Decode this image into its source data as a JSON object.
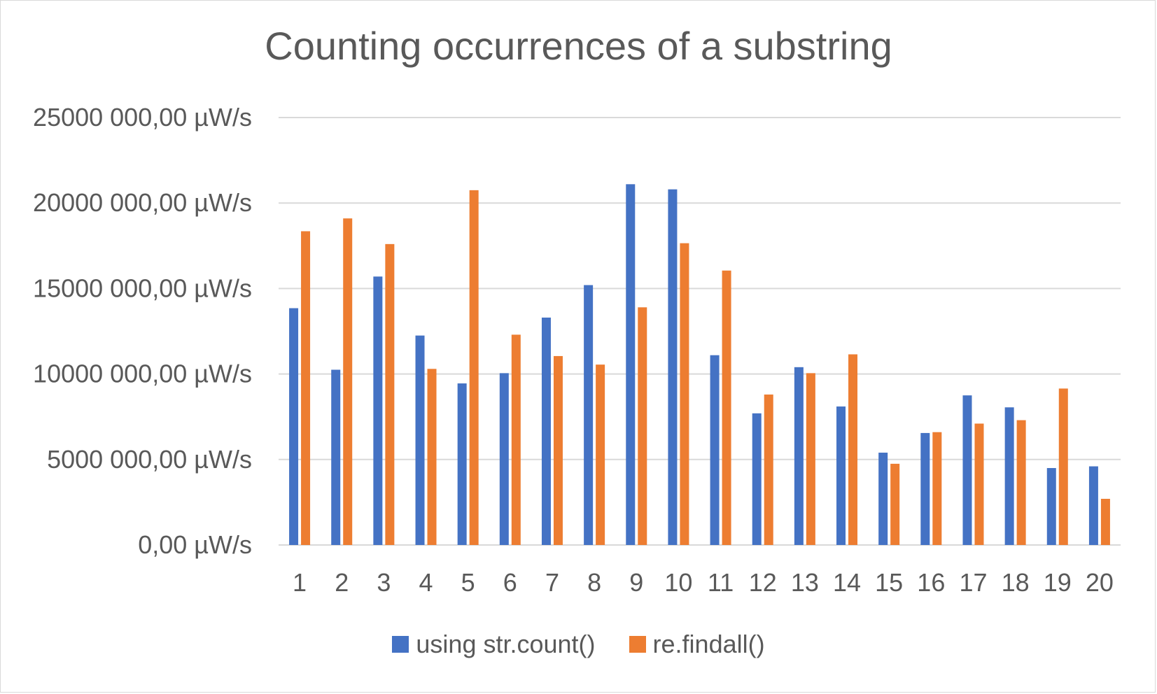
{
  "chart_data": {
    "type": "bar",
    "title": "Counting occurrences of a substring",
    "xlabel": "",
    "ylabel": "",
    "ylim": [
      0,
      25000000
    ],
    "yticks": [
      0,
      5000000,
      10000000,
      15000000,
      20000000,
      25000000
    ],
    "ytick_labels": [
      "0,00 µW/s",
      "5000 000,00 µW/s",
      "10000 000,00 µW/s",
      "15000 000,00 µW/s",
      "20000 000,00 µW/s",
      "25000 000,00 µW/s"
    ],
    "categories": [
      "1",
      "2",
      "3",
      "4",
      "5",
      "6",
      "7",
      "8",
      "9",
      "10",
      "11",
      "12",
      "13",
      "14",
      "15",
      "16",
      "17",
      "18",
      "19",
      "20"
    ],
    "grid": true,
    "legend_position": "bottom",
    "series": [
      {
        "name": "using str.count()",
        "color": "#4472C4",
        "values": [
          13850000,
          10250000,
          15700000,
          12250000,
          9450000,
          10050000,
          13300000,
          15200000,
          21100000,
          20800000,
          11100000,
          7700000,
          10400000,
          8100000,
          5400000,
          6550000,
          8750000,
          8050000,
          4500000,
          4600000
        ]
      },
      {
        "name": "re.findall()",
        "color": "#ED7D31",
        "values": [
          18350000,
          19100000,
          17600000,
          10300000,
          20750000,
          12300000,
          11050000,
          10550000,
          13900000,
          17650000,
          16050000,
          8800000,
          10050000,
          11150000,
          4750000,
          6600000,
          7100000,
          7300000,
          9150000,
          2700000
        ]
      }
    ]
  }
}
